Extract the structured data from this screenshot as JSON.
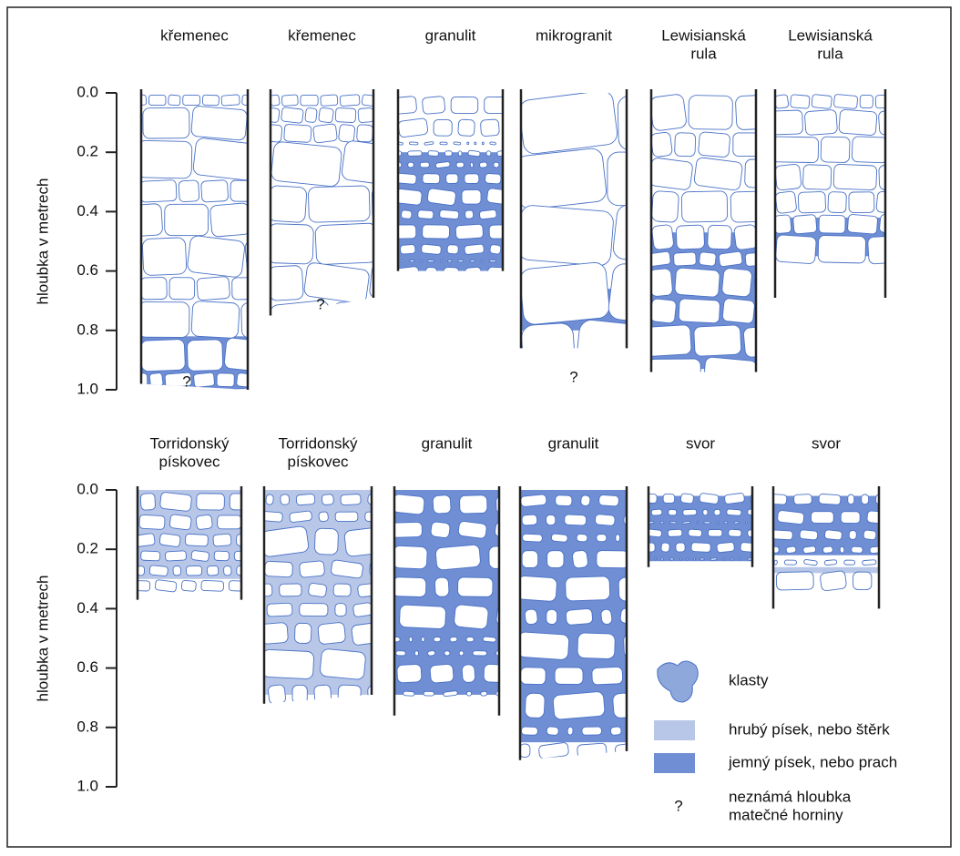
{
  "rows": [
    {
      "axis_label": "hloubka v metrech",
      "ticks": [
        "0.0",
        "0.2",
        "0.4",
        "0.6",
        "0.8",
        "1.0"
      ],
      "profiles": [
        {
          "label": [
            "křemenec"
          ],
          "note": "?"
        },
        {
          "label": [
            "křemenec"
          ],
          "note": "?"
        },
        {
          "label": [
            "granulit"
          ]
        },
        {
          "label": [
            "mikrogranit"
          ],
          "note": "?"
        },
        {
          "label": [
            "Lewisianská",
            "rula"
          ]
        },
        {
          "label": [
            "Lewisianská",
            "rula"
          ]
        }
      ]
    },
    {
      "axis_label": "hloubka v metrech",
      "ticks": [
        "0.0",
        "0.2",
        "0.4",
        "0.6",
        "0.8",
        "1.0"
      ],
      "profiles": [
        {
          "label": [
            "Torridonský",
            "pískovec"
          ]
        },
        {
          "label": [
            "Torridonský",
            "pískovec"
          ]
        },
        {
          "label": [
            "granulit"
          ]
        },
        {
          "label": [
            "granulit"
          ]
        },
        {
          "label": [
            "svor"
          ]
        },
        {
          "label": [
            "svor"
          ]
        }
      ]
    }
  ],
  "legend": [
    {
      "label": [
        "klasty"
      ]
    },
    {
      "label": [
        "hrubý písek, nebo štěrk"
      ]
    },
    {
      "label": [
        "jemný písek, nebo prach"
      ]
    },
    {
      "symbol": "?",
      "label": [
        "neznámá hloubka",
        "matečné horniny"
      ]
    }
  ]
}
